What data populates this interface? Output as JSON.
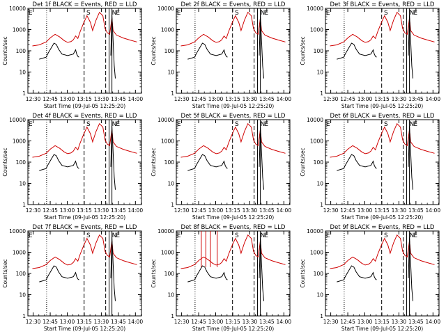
{
  "colors": {
    "events": "#000000",
    "lld": "#d00000",
    "background": "#ffffff"
  },
  "chart_data": {
    "type": "line",
    "ylabel": "Counts/sec",
    "xlabel": "Start Time (09-Jul-05 12:25:20)",
    "y_scale": "log",
    "ylim": [
      1,
      10000
    ],
    "y_ticks": [
      {
        "value": 1,
        "label": "1"
      },
      {
        "value": 10,
        "label": "10"
      },
      {
        "value": 100,
        "label": "100"
      },
      {
        "value": 1000,
        "label": "1000"
      },
      {
        "value": 10000,
        "label": "10000"
      }
    ],
    "xlim_min_after_start": [
      0,
      100
    ],
    "x_ticks": [
      {
        "value": 4.67,
        "label": "12:30"
      },
      {
        "value": 19.67,
        "label": "12:45"
      },
      {
        "value": 34.67,
        "label": "13:00"
      },
      {
        "value": 49.67,
        "label": "13:15"
      },
      {
        "value": 64.67,
        "label": "13:30"
      },
      {
        "value": 79.67,
        "label": "13:45"
      },
      {
        "value": 94.67,
        "label": "14:00"
      }
    ],
    "markers": [
      {
        "label": "E",
        "x": 0.5
      },
      {
        "label": "S",
        "x": 51.5
      },
      {
        "label": "N",
        "x": 74
      },
      {
        "label": "E",
        "x": 77.5
      }
    ],
    "vertical_lines": [
      {
        "x": 16.5,
        "style": "dotted"
      },
      {
        "x": 49.5,
        "style": "dashed"
      },
      {
        "x": 68.5,
        "style": "dashed"
      },
      {
        "x": 71.5,
        "style": "solid"
      },
      {
        "x": 74,
        "style": "solid"
      }
    ],
    "panels": [
      {
        "title": "Det 1f BLACK = Events, RED = LLD",
        "spikes": false
      },
      {
        "title": "Det 2f BLACK = Events, RED = LLD",
        "spikes": false
      },
      {
        "title": "Det 3f BLACK = Events, RED = LLD",
        "spikes": false
      },
      {
        "title": "Det 4f BLACK = Events, RED = LLD",
        "spikes": false
      },
      {
        "title": "Det 5f BLACK = Events, RED = LLD",
        "spikes": false
      },
      {
        "title": "Det 6f BLACK = Events, RED = LLD",
        "spikes": false
      },
      {
        "title": "Det 7f BLACK = Events, RED = LLD",
        "spikes": false
      },
      {
        "title": "Det 8f BLACK = Events, RED = LLD",
        "spikes": true
      },
      {
        "title": "Det 9f BLACK = Events, RED = LLD",
        "spikes": false
      }
    ],
    "series": [
      {
        "name": "RED = LLD",
        "points": [
          [
            4,
            170
          ],
          [
            10,
            190
          ],
          [
            16,
            260
          ],
          [
            20,
            420
          ],
          [
            24,
            600
          ],
          [
            28,
            450
          ],
          [
            32,
            300
          ],
          [
            35,
            250
          ],
          [
            38,
            270
          ],
          [
            40,
            330
          ],
          [
            42,
            500
          ],
          [
            44,
            380
          ],
          [
            46,
            800
          ],
          [
            49,
            2000
          ],
          [
            52,
            4500
          ],
          [
            55,
            2200
          ],
          [
            57,
            900
          ],
          [
            60,
            2800
          ],
          [
            63,
            6500
          ],
          [
            66,
            4500
          ],
          [
            68,
            1100
          ],
          [
            70,
            700
          ],
          [
            72,
            600
          ],
          [
            74,
            3500
          ],
          [
            75,
            900
          ],
          [
            78,
            550
          ],
          [
            84,
            400
          ],
          [
            90,
            320
          ],
          [
            96,
            260
          ]
        ]
      },
      {
        "name": "BLACK = Events",
        "points": [
          [
            10,
            40
          ],
          [
            16,
            50
          ],
          [
            18,
            80
          ],
          [
            21,
            150
          ],
          [
            23,
            230
          ],
          [
            25,
            200
          ],
          [
            27,
            120
          ],
          [
            30,
            70
          ],
          [
            35,
            60
          ],
          [
            40,
            70
          ],
          [
            42,
            110
          ],
          [
            43,
            70
          ],
          [
            44,
            55
          ],
          [
            45,
            50
          ]
        ]
      },
      {
        "name": "BLACK = Events (spike)",
        "points": [
          [
            73,
            60
          ],
          [
            74,
            5000
          ],
          [
            75,
            300
          ],
          [
            76,
            20
          ],
          [
            77,
            5
          ]
        ]
      }
    ]
  }
}
